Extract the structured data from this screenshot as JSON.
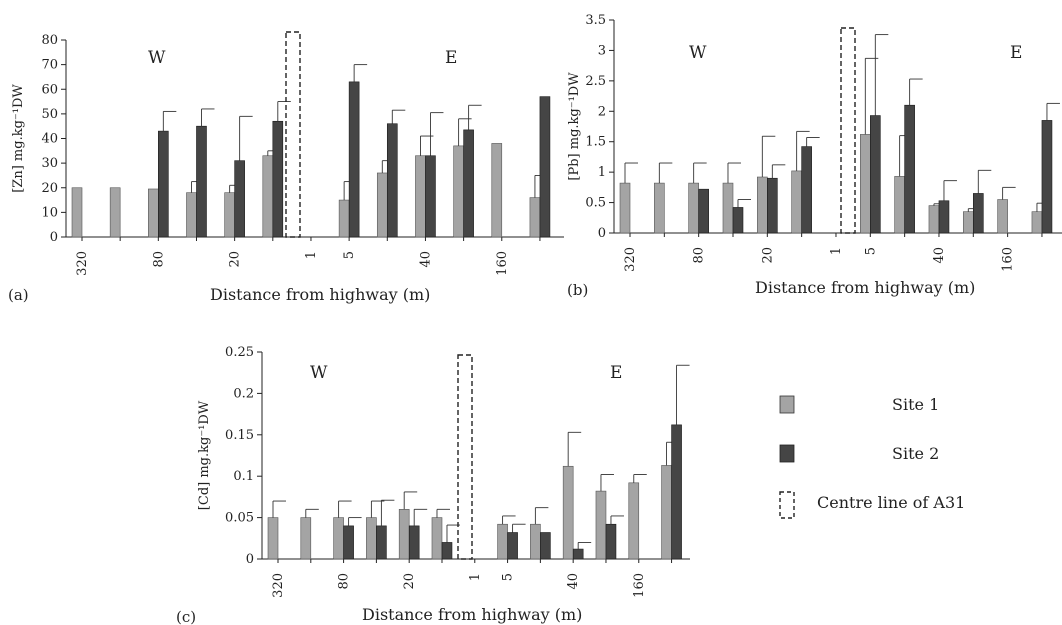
{
  "legend": {
    "site1": "Site 1",
    "site2": "Site 2",
    "centre": "Centre line of A31"
  },
  "colors": {
    "site1": "#a4a4a4",
    "site2": "#454545",
    "axis": "#222222"
  },
  "chart_data": [
    {
      "type": "bar",
      "panel_label": "(a)",
      "ylabel": "[Zn] mg.kg⁻¹DW",
      "xlabel": "Distance from highway (m)",
      "ylim": [
        0,
        80
      ],
      "yticks": [
        "0",
        "10",
        "20",
        "30",
        "40",
        "50",
        "60",
        "70",
        "80"
      ],
      "side_labels": [
        "W",
        "E"
      ],
      "categories": [
        "320",
        "160",
        "80",
        "40",
        "20",
        "5",
        "1",
        "5",
        "20",
        "40",
        "80",
        "160",
        "320"
      ],
      "tick_labels": [
        "320",
        "",
        "80",
        "",
        "20",
        "",
        "1",
        "5",
        "",
        "40",
        "",
        "160",
        ""
      ],
      "centre_index": 6,
      "series": [
        {
          "name": "Site 1",
          "values": [
            20,
            20,
            19.5,
            18,
            18,
            33,
            null,
            15,
            26,
            33,
            37,
            38,
            16
          ],
          "err": [
            0,
            0,
            0,
            4.5,
            3,
            2,
            null,
            7.5,
            5,
            8,
            11,
            0,
            9
          ]
        },
        {
          "name": "Site 2",
          "values": [
            null,
            null,
            43,
            45,
            31,
            47,
            null,
            63,
            46,
            33,
            43.5,
            null,
            57
          ],
          "err": [
            null,
            null,
            8,
            7,
            18,
            8,
            null,
            7,
            5.5,
            17.5,
            10,
            null,
            0
          ]
        }
      ]
    },
    {
      "type": "bar",
      "panel_label": "(b)",
      "ylabel": "[Pb] mg.kg⁻¹DW",
      "xlabel": "Distance from highway (m)",
      "ylim": [
        0,
        3.5
      ],
      "yticks": [
        "0",
        "0.5",
        "1",
        "1.5",
        "2",
        "2.5",
        "3",
        "3.5"
      ],
      "side_labels": [
        "W",
        "E"
      ],
      "categories": [
        "320",
        "160",
        "80",
        "40",
        "20",
        "5",
        "1",
        "5",
        "20",
        "40",
        "80",
        "160",
        "320"
      ],
      "tick_labels": [
        "320",
        "",
        "80",
        "",
        "20",
        "",
        "1",
        "5",
        "",
        "40",
        "",
        "160",
        ""
      ],
      "centre_index": 6,
      "series": [
        {
          "name": "Site 1",
          "values": [
            0.82,
            0.82,
            0.82,
            0.82,
            0.92,
            1.02,
            null,
            1.62,
            0.93,
            0.45,
            0.35,
            0.55,
            0.35
          ],
          "err": [
            0.33,
            0.33,
            0.33,
            0.33,
            0.67,
            0.65,
            null,
            1.25,
            0.67,
            0.03,
            0.05,
            0.2,
            0.14
          ]
        },
        {
          "name": "Site 2",
          "values": [
            null,
            null,
            0.72,
            0.42,
            0.9,
            1.42,
            null,
            1.93,
            2.1,
            0.53,
            0.65,
            null,
            1.85
          ],
          "err": [
            null,
            null,
            0,
            0.13,
            0.22,
            0.15,
            null,
            1.33,
            0.43,
            0.33,
            0.38,
            null,
            0.28
          ]
        }
      ]
    },
    {
      "type": "bar",
      "panel_label": "(c)",
      "ylabel": "[Cd] mg.kg⁻¹DW",
      "xlabel": "Distance from highway (m)",
      "ylim": [
        0,
        0.25
      ],
      "yticks": [
        "0",
        "0.05",
        "0.1",
        "0.15",
        "0.2",
        "0.25"
      ],
      "side_labels": [
        "W",
        "E"
      ],
      "categories": [
        "320",
        "160",
        "80",
        "40",
        "20",
        "5",
        "1",
        "5",
        "20",
        "40",
        "80",
        "160",
        "320"
      ],
      "tick_labels": [
        "320",
        "",
        "80",
        "",
        "20",
        "",
        "1",
        "5",
        "",
        "40",
        "",
        "160",
        ""
      ],
      "centre_index": 6,
      "series": [
        {
          "name": "Site 1",
          "values": [
            0.05,
            0.05,
            0.05,
            0.05,
            0.06,
            0.05,
            null,
            0.042,
            0.042,
            0.112,
            0.082,
            0.092,
            0.113
          ],
          "err": [
            0.02,
            0.01,
            0.02,
            0.02,
            0.021,
            0.01,
            null,
            0.01,
            0.02,
            0.041,
            0.02,
            0.01,
            0.028
          ]
        },
        {
          "name": "Site 2",
          "values": [
            null,
            null,
            0.04,
            0.04,
            0.04,
            0.02,
            null,
            0.032,
            0.032,
            0.012,
            0.042,
            null,
            0.162
          ],
          "err": [
            null,
            null,
            0.01,
            0.031,
            0.02,
            0.021,
            null,
            0.01,
            0,
            0.008,
            0.01,
            null,
            0.072
          ]
        }
      ]
    }
  ]
}
